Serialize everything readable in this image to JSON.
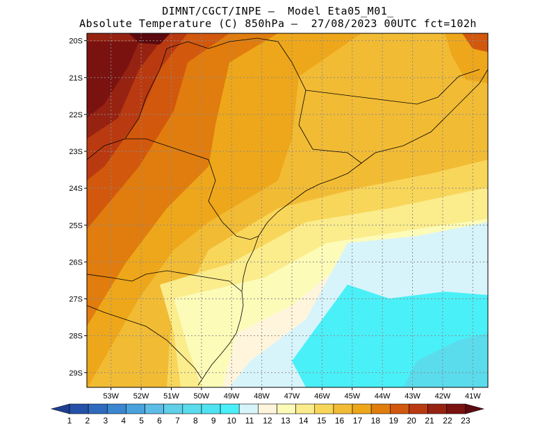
{
  "title": {
    "line1": "DIMNT/CGCT/INPE –  Model Eta05_M01_",
    "line2": "Absolute Temperature (C) 850hPa –  27/08/2023 00UTC fct=102h"
  },
  "map": {
    "lat_labels": [
      "20S",
      "21S",
      "22S",
      "23S",
      "24S",
      "25S",
      "26S",
      "27S",
      "28S",
      "29S"
    ],
    "lon_labels": [
      "53W",
      "52W",
      "51W",
      "50W",
      "49W",
      "48W",
      "47W",
      "46W",
      "45W",
      "44W",
      "43W",
      "42W",
      "41W"
    ],
    "lat_range": [
      -29.4,
      -19.8
    ],
    "lon_range": [
      -53.8,
      -40.5
    ]
  },
  "colorbar": {
    "labels": [
      "1",
      "2",
      "3",
      "4",
      "5",
      "6",
      "7",
      "8",
      "9",
      "10",
      "11",
      "12",
      "13",
      "14",
      "15",
      "16",
      "17",
      "18",
      "19",
      "20",
      "21",
      "22",
      "23"
    ],
    "colors": [
      "#1f3f93",
      "#2552a8",
      "#2f6bbd",
      "#3a86cf",
      "#4aa2dd",
      "#5cbde6",
      "#5fd0e8",
      "#5adcec",
      "#4fe3f2",
      "#4af0f8",
      "#d8f4fb",
      "#fff5dc",
      "#fdfbb8",
      "#fbec8c",
      "#f8d65a",
      "#f2bb34",
      "#eea71a",
      "#e07d0e",
      "#d2580d",
      "#b93a10",
      "#962312",
      "#7a1210",
      "#5c0a0f"
    ]
  }
}
